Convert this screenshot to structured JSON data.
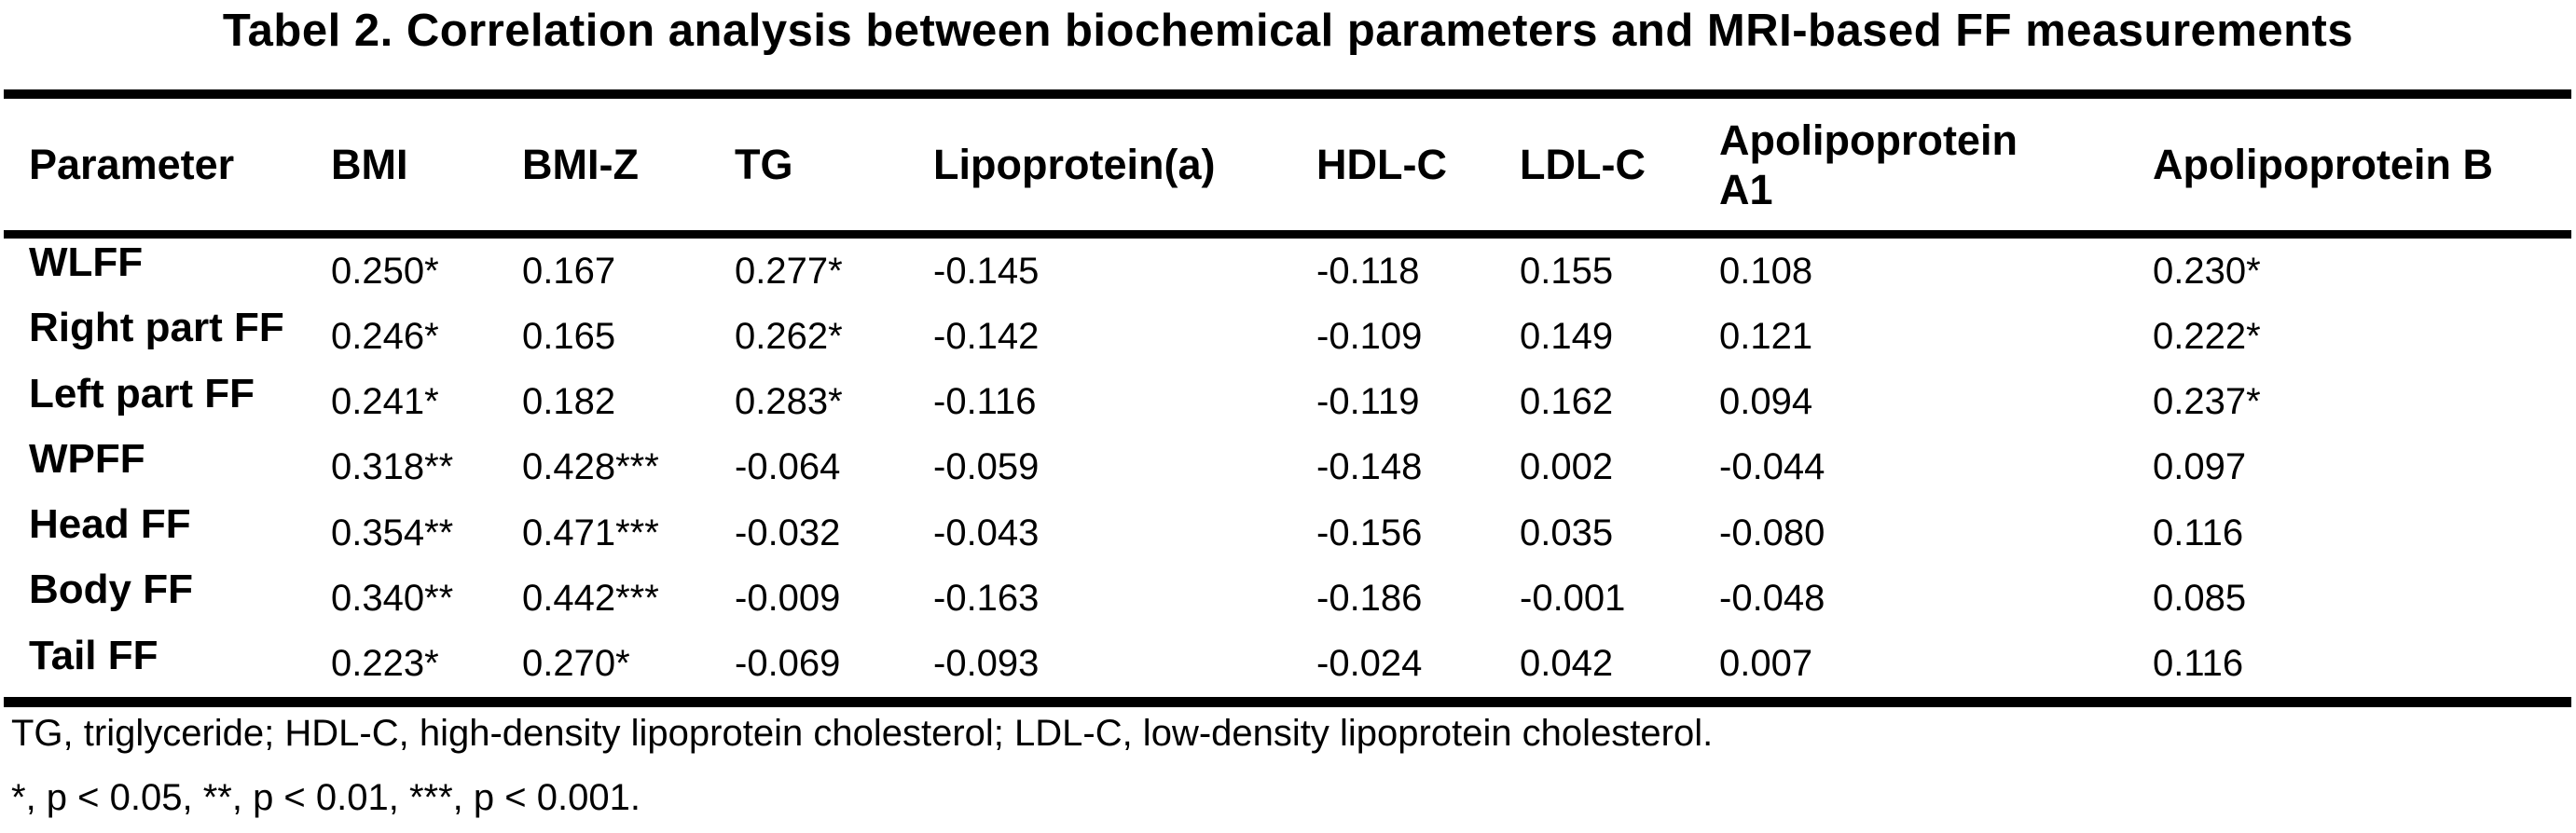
{
  "title": "Tabel 2. Correlation analysis between biochemical parameters and MRI-based FF measurements",
  "table": {
    "columns": [
      "Parameter",
      "BMI",
      "BMI-Z",
      "TG",
      "Lipoprotein(a)",
      "HDL-C",
      "LDL-C",
      "Apolipoprotein A1",
      "Apolipoprotein B"
    ],
    "rows": [
      {
        "label": "WLFF",
        "values": [
          "0.250*",
          "0.167",
          "0.277*",
          "-0.145",
          "-0.118",
          "0.155",
          "0.108",
          "0.230*"
        ]
      },
      {
        "label": "Right part FF",
        "values": [
          "0.246*",
          "0.165",
          "0.262*",
          "-0.142",
          "-0.109",
          "0.149",
          "0.121",
          "0.222*"
        ]
      },
      {
        "label": "Left part FF",
        "values": [
          "0.241*",
          "0.182",
          "0.283*",
          "-0.116",
          "-0.119",
          "0.162",
          "0.094",
          "0.237*"
        ]
      },
      {
        "label": "WPFF",
        "values": [
          "0.318**",
          "0.428***",
          "-0.064",
          "-0.059",
          "-0.148",
          "0.002",
          "-0.044",
          "0.097"
        ]
      },
      {
        "label": "Head FF",
        "values": [
          "0.354**",
          "0.471***",
          "-0.032",
          "-0.043",
          "-0.156",
          "0.035",
          "-0.080",
          "0.116"
        ]
      },
      {
        "label": "Body FF",
        "values": [
          "0.340**",
          "0.442***",
          "-0.009",
          "-0.163",
          "-0.186",
          "-0.001",
          "-0.048",
          "0.085"
        ]
      },
      {
        "label": "Tail FF",
        "values": [
          "0.223*",
          "0.270*",
          "-0.069",
          "-0.093",
          "-0.024",
          "0.042",
          "0.007",
          "0.116"
        ]
      }
    ]
  },
  "footnotes": [
    "TG, triglyceride; HDL-C, high-density lipoprotein cholesterol; LDL-C, low-density lipoprotein cholesterol.",
    "*, p < 0.05, **, p < 0.01, ***, p < 0.001."
  ],
  "colors": {
    "text": "#000000",
    "background": "#ffffff",
    "rule": "#000000"
  }
}
